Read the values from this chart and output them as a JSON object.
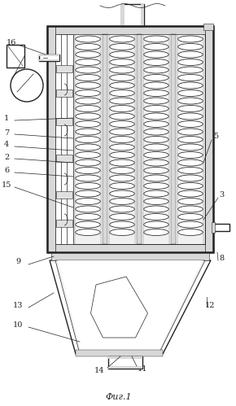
{
  "figure_title": "Фиг.1",
  "bg_color": "#ffffff",
  "line_color": "#222222",
  "gray_fill": "#b0b0b0",
  "light_gray": "#d8d8d8",
  "very_light_gray": "#f0f0f0"
}
